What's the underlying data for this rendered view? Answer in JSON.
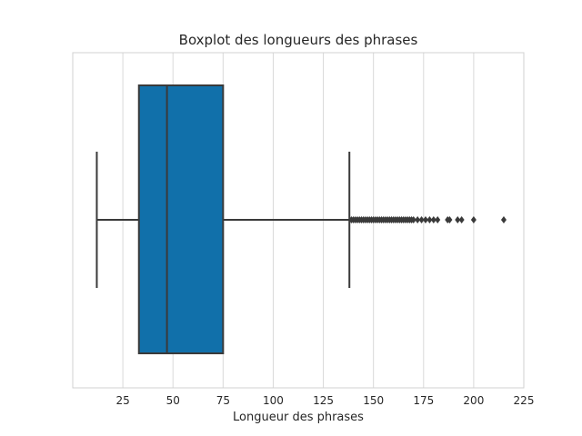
{
  "chart_data": {
    "type": "boxplot",
    "orientation": "horizontal",
    "title": "Boxplot des longueurs des phrases",
    "xlabel": "Longueur des phrases",
    "ylabel": "",
    "xlim": [
      0,
      225
    ],
    "xticks": [
      25,
      50,
      75,
      100,
      125,
      150,
      175,
      200,
      225
    ],
    "grid": "vertical",
    "colors": {
      "box": "#1170aa",
      "line": "#3a3a3a",
      "grid": "#d9d9d9",
      "frame": "#d0d0d0"
    },
    "box": {
      "whisker_low": 12,
      "q1": 33,
      "median": 47,
      "q3": 75,
      "whisker_high": 138
    },
    "outliers": [
      139,
      140,
      141,
      142,
      143,
      144,
      145,
      146,
      147,
      148,
      149,
      150,
      151,
      152,
      153,
      154,
      155,
      156,
      157,
      158,
      159,
      160,
      161,
      162,
      163,
      164,
      165,
      166,
      167,
      168,
      169,
      170,
      172,
      174,
      176,
      178,
      180,
      182,
      187,
      188,
      192,
      194,
      200,
      215
    ]
  }
}
